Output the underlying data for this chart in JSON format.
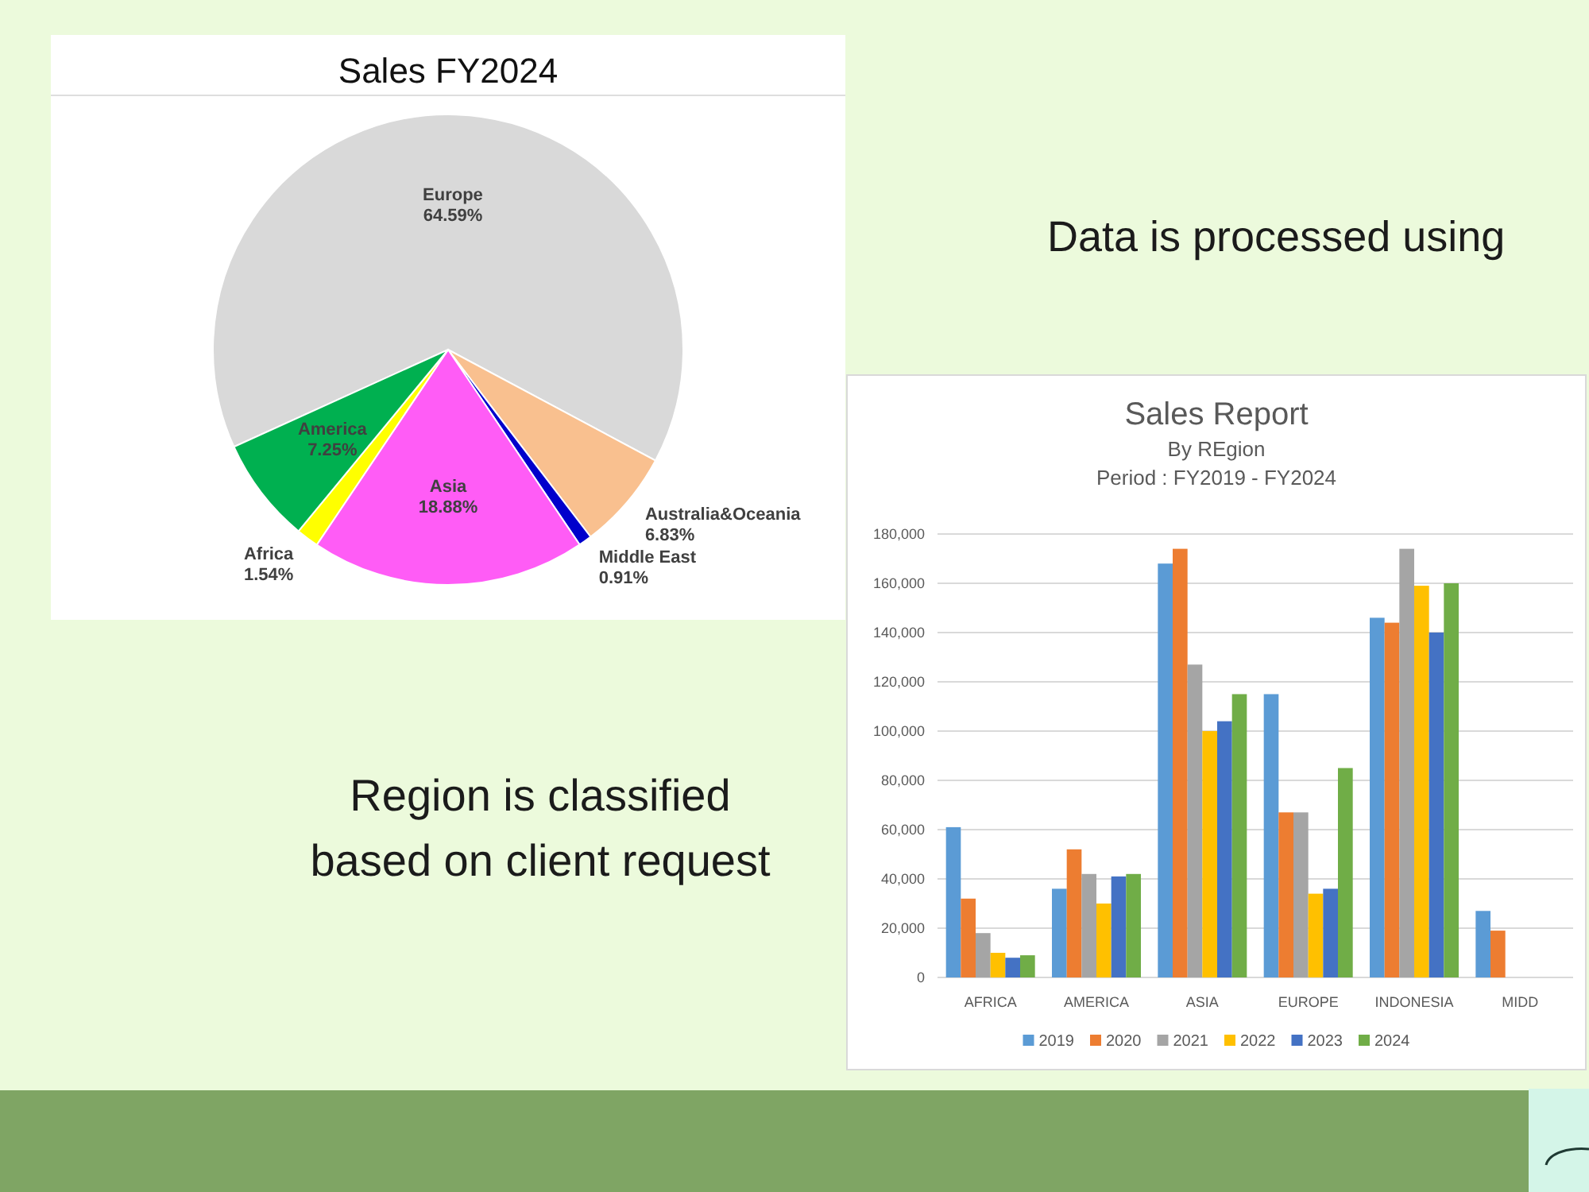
{
  "chart_data": [
    {
      "type": "pie",
      "title": "Sales FY2024",
      "categories": [
        "Europe",
        "Australia&Oceania",
        "Middle East",
        "Asia",
        "Africa",
        "America"
      ],
      "values": [
        64.59,
        6.83,
        0.91,
        18.88,
        1.54,
        7.25
      ],
      "colors": [
        "#d9d9d9",
        "#f9c08f",
        "#0000cc",
        "#ff5cf6",
        "#ffff00",
        "#00b050"
      ],
      "value_labels": [
        "64.59%",
        "6.83%",
        "0.91%",
        "18.88%",
        "1.54%",
        "7.25%"
      ],
      "annotations": [
        "Region is classified based on client request"
      ]
    },
    {
      "type": "bar",
      "title": "Sales Report",
      "subtitle": "By REgion",
      "annotations": [
        "Data is processed using",
        "Period : FY2019 - FY2024"
      ],
      "categories": [
        "AFRICA",
        "AMERICA",
        "ASIA",
        "EUROPE",
        "INDONESIA",
        "MIDD"
      ],
      "series": [
        {
          "name": "2019",
          "color": "#5b9bd5",
          "values": [
            61000,
            36000,
            168000,
            115000,
            146000,
            27000
          ]
        },
        {
          "name": "2020",
          "color": "#ed7d31",
          "values": [
            32000,
            52000,
            174000,
            67000,
            144000,
            19000
          ]
        },
        {
          "name": "2021",
          "color": "#a5a5a5",
          "values": [
            18000,
            42000,
            127000,
            67000,
            174000,
            null
          ]
        },
        {
          "name": "2022",
          "color": "#ffc000",
          "values": [
            10000,
            30000,
            100000,
            34000,
            159000,
            null
          ]
        },
        {
          "name": "2023",
          "color": "#4472c4",
          "values": [
            8000,
            41000,
            104000,
            36000,
            140000,
            null
          ]
        },
        {
          "name": "2024",
          "color": "#70ad47",
          "values": [
            9000,
            42000,
            115000,
            85000,
            160000,
            null
          ]
        }
      ],
      "ylim": [
        0,
        180000
      ],
      "yticks": [
        0,
        {
          "value": 20000,
          "label": "20,000"
        },
        {
          "value": 40000,
          "label": "40,000"
        },
        {
          "value": 60000,
          "label": "60,000"
        },
        {
          "value": 80000,
          "label": "80,000"
        },
        {
          "value": 100000,
          "label": "100,000"
        },
        {
          "value": 120000,
          "label": "120,000"
        },
        {
          "value": 140000,
          "label": "140,000"
        },
        {
          "value": 160000,
          "label": "160,000"
        },
        {
          "value": 180000,
          "label": "180,000"
        }
      ],
      "grid": "y",
      "legend": "bottom"
    }
  ]
}
